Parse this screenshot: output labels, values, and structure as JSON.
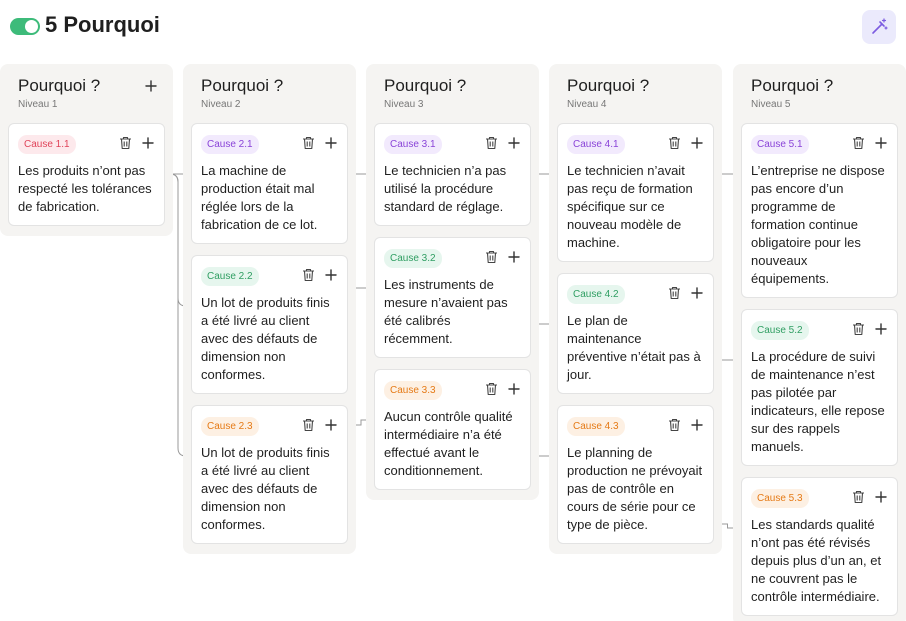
{
  "header": {
    "title": "5 Pourquoi"
  },
  "columns": [
    {
      "title": "Pourquoi ?",
      "level": "Niveau 1",
      "cards": [
        {
          "tag": "Cause 1.1",
          "text": "Les produits n’ont pas respecté les tolérances de fabrication."
        }
      ]
    },
    {
      "title": "Pourquoi ?",
      "level": "Niveau 2",
      "cards": [
        {
          "tag": "Cause 2.1",
          "text": "La machine de production était mal réglée lors de la fabrication de ce lot."
        },
        {
          "tag": "Cause 2.2",
          "text": "Un lot de produits finis a été livré au client avec des défauts de dimension non conformes."
        },
        {
          "tag": "Cause 2.3",
          "text": "Un lot de produits finis a été livré au client avec des défauts de dimension non conformes."
        }
      ]
    },
    {
      "title": "Pourquoi ?",
      "level": "Niveau 3",
      "cards": [
        {
          "tag": "Cause 3.1",
          "text": "Le technicien n’a pas utilisé la procédure standard de réglage."
        },
        {
          "tag": "Cause 3.2",
          "text": "Les instruments de mesure n’avaient pas été calibrés récemment."
        },
        {
          "tag": "Cause 3.3",
          "text": "Aucun contrôle qualité intermédiaire n’a été effectué avant le conditionnement."
        }
      ]
    },
    {
      "title": "Pourquoi ?",
      "level": "Niveau 4",
      "cards": [
        {
          "tag": "Cause 4.1",
          "text": "Le technicien n’avait pas reçu de formation spécifique sur ce nouveau modèle de machine."
        },
        {
          "tag": "Cause 4.2",
          "text": "Le plan de maintenance préventive n’était pas à jour."
        },
        {
          "tag": "Cause 4.3",
          "text": "Le planning de production ne prévoyait pas de contrôle en cours de série pour ce type de pièce."
        }
      ]
    },
    {
      "title": "Pourquoi ?",
      "level": "Niveau 5",
      "cards": [
        {
          "tag": "Cause 5.1",
          "text": "L’entreprise ne dispose pas encore d’un programme de formation continue obligatoire pour les nouveaux équipements."
        },
        {
          "tag": "Cause 5.2",
          "text": "La procédure de suivi de maintenance n’est pas pilotée par indicateurs, elle repose sur des rappels manuels."
        },
        {
          "tag": "Cause 5.3",
          "text": "Les standards qualité n’ont pas été révisés depuis plus d’un an, et ne couvrent pas le contrôle intermédiaire."
        }
      ]
    }
  ]
}
